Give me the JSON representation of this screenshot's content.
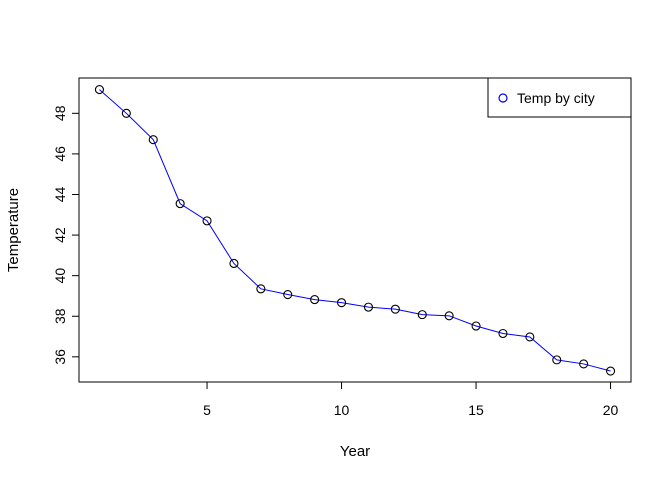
{
  "chart_data": {
    "type": "line",
    "title": "",
    "xlabel": "Year",
    "ylabel": "Temperature",
    "xlim": [
      0.24,
      20.76
    ],
    "ylim": [
      34.76,
      49.74
    ],
    "xticks": [
      5,
      10,
      15,
      20
    ],
    "yticks": [
      36,
      38,
      40,
      42,
      44,
      46,
      48
    ],
    "grid": false,
    "legend_position": "top-right",
    "series": [
      {
        "name": "Temp by city",
        "color": "#0000ff",
        "marker": "open-circle",
        "x": [
          1,
          2,
          3,
          4,
          5,
          6,
          7,
          8,
          9,
          10,
          11,
          12,
          13,
          14,
          15,
          16,
          17,
          18,
          19,
          20
        ],
        "y": [
          49.17,
          48.0,
          46.7,
          43.55,
          42.7,
          40.6,
          39.35,
          39.07,
          38.82,
          38.67,
          38.45,
          38.35,
          38.08,
          38.02,
          37.52,
          37.15,
          36.98,
          35.85,
          35.65,
          35.3
        ]
      }
    ]
  }
}
